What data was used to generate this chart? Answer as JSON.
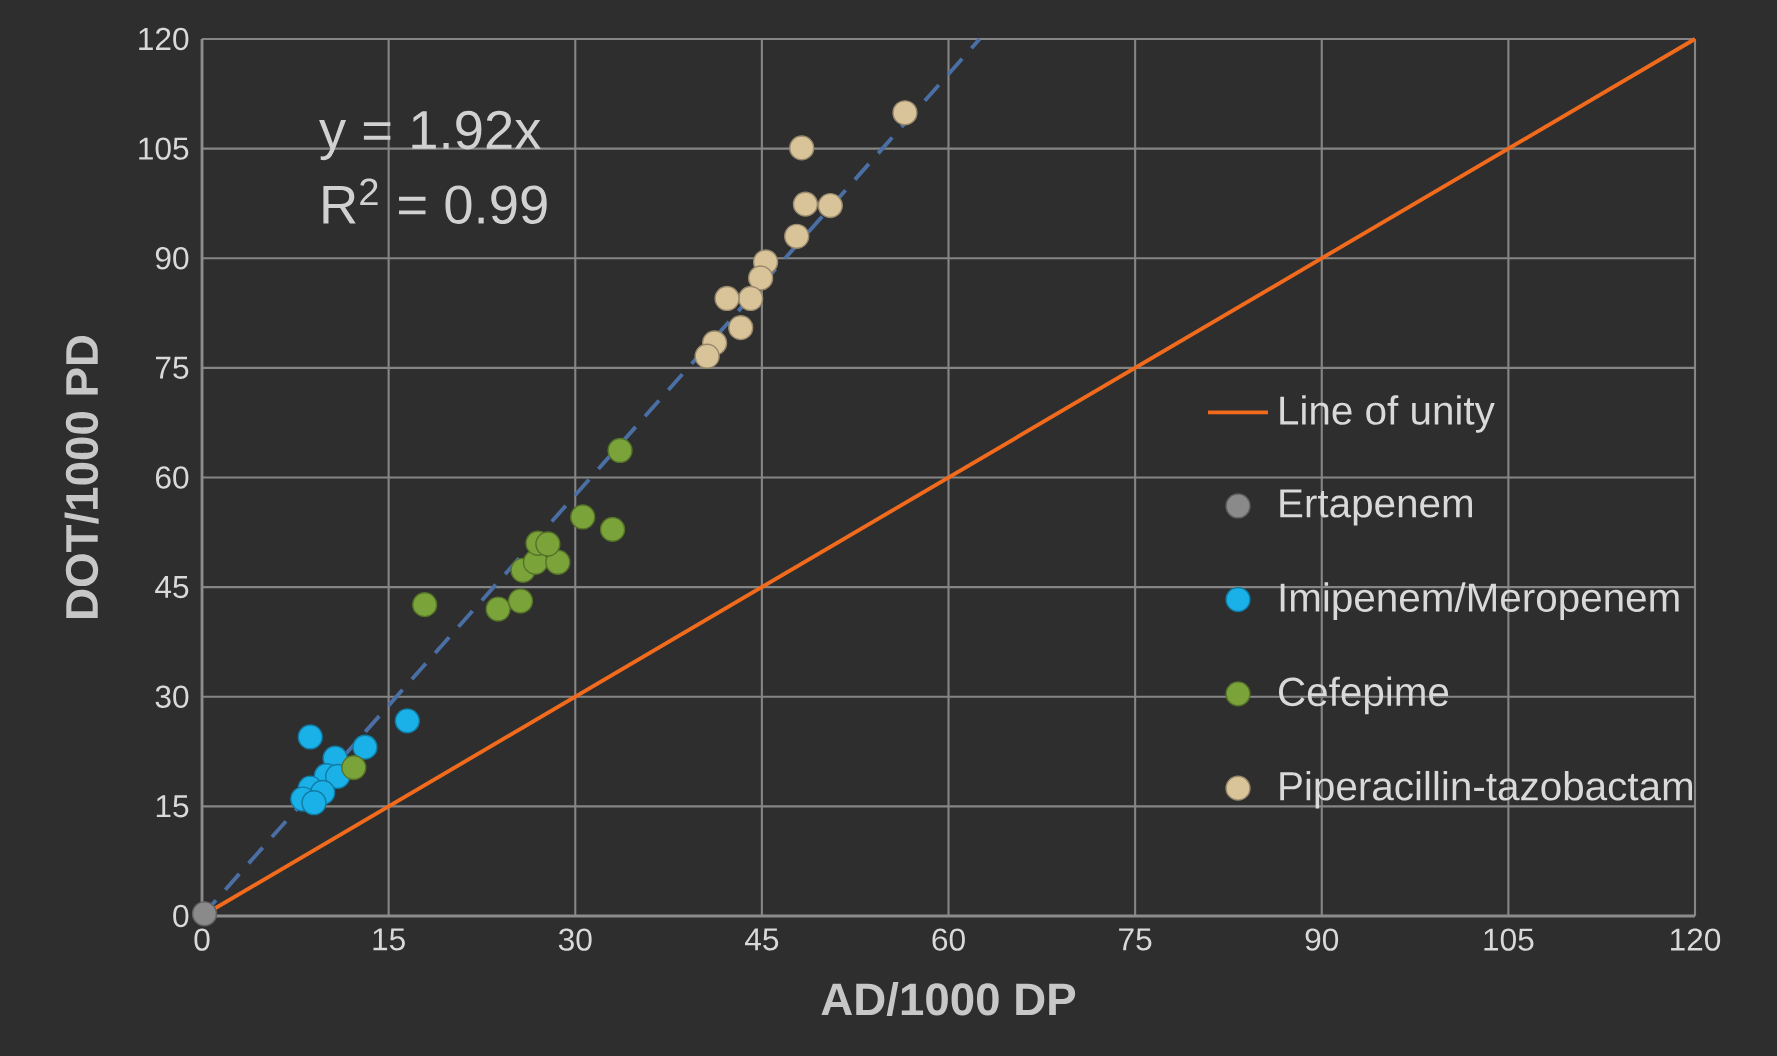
{
  "chart_data": {
    "type": "scatter",
    "xlabel": "AD/1000 DP",
    "ylabel": "DOT/1000 PD",
    "xlim": [
      0,
      120
    ],
    "ylim": [
      0,
      120
    ],
    "xticks": [
      0,
      15,
      30,
      45,
      60,
      75,
      90,
      105,
      120
    ],
    "yticks": [
      0,
      15,
      30,
      45,
      60,
      75,
      90,
      105,
      120
    ],
    "grid": true,
    "legend": "right",
    "annotations": [
      "y = 1.92x",
      "R$^{2}$ = 0.99"
    ],
    "series": [
      {
        "name": "Line of unity",
        "type": "line",
        "marker": "none",
        "color": "#f26b1d",
        "x": [
          0,
          120
        ],
        "values": [
          0,
          120
        ]
      },
      {
        "type": "line",
        "marker": "none",
        "color": "#4a6fa5",
        "line_style": "dashed",
        "x": [
          0,
          62.5
        ],
        "values": [
          0,
          120
        ]
      },
      {
        "name": "Ertapenem",
        "marker": "circle",
        "color": "#8a8a8a",
        "x": [
          0.2
        ],
        "values": [
          0.3
        ]
      },
      {
        "name": "Imipenem/Meropenem",
        "marker": "circle",
        "color": "#1ab0e8",
        "x": [
          8.7,
          16.5,
          13.1,
          10.7,
          10.0,
          10.9,
          8.7,
          9.7,
          8.1,
          9.0
        ],
        "values": [
          24.5,
          26.7,
          23.1,
          21.6,
          19.2,
          19.1,
          17.5,
          16.9,
          16.0,
          15.5
        ]
      },
      {
        "name": "Cefepime",
        "marker": "circle",
        "color": "#7aa33a",
        "x": [
          12.2,
          17.9,
          23.8,
          25.6,
          25.8,
          26.8,
          28.6,
          27.0,
          27.8,
          30.6,
          33.0,
          33.6
        ],
        "values": [
          20.3,
          42.6,
          42.0,
          43.1,
          47.3,
          48.4,
          48.4,
          51.0,
          50.9,
          54.6,
          52.9,
          63.7
        ]
      },
      {
        "name": "Piperacillin-tazobactam",
        "marker": "circle",
        "color": "#d9c49a",
        "x": [
          56.5,
          48.2,
          48.5,
          50.5,
          47.8,
          45.3,
          44.9,
          44.1,
          42.2,
          43.3,
          41.2,
          40.6
        ],
        "values": [
          109.9,
          105.1,
          97.4,
          97.2,
          93.0,
          89.5,
          87.3,
          84.5,
          84.5,
          80.5,
          78.4,
          76.6
        ]
      }
    ]
  }
}
